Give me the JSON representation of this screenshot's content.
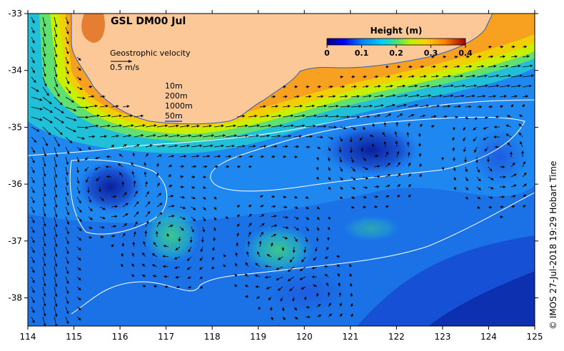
{
  "title": "GSL DM00 Jul",
  "credit": "© IMOS 27-Jul-2018 19:29 Hobart Time",
  "colorbar": {
    "title": "Height (m)",
    "ticks": [
      "0",
      "0.1",
      "0.2",
      "0.3",
      "0.4"
    ],
    "colors": [
      "#00007f",
      "#0000ff",
      "#007fff",
      "#00cfff",
      "#3fe07f",
      "#c0f000",
      "#ffd000",
      "#ff8000",
      "#e04000",
      "#a00000"
    ]
  },
  "velocity_legend": {
    "label": "Geostrophic velocity",
    "scale": "0.5 m/s"
  },
  "depth_legend": [
    "10m",
    "200m",
    "1000m",
    "50m"
  ],
  "axes": {
    "x_ticks": [
      "114",
      "115",
      "116",
      "117",
      "118",
      "119",
      "120",
      "121",
      "122",
      "123",
      "124",
      "125"
    ],
    "y_ticks": [
      "-33",
      "-34",
      "-35",
      "-36",
      "-37",
      "-38"
    ]
  },
  "colors": {
    "land": "#fcc898",
    "contour": "#ffffff",
    "frame": "#000000"
  }
}
